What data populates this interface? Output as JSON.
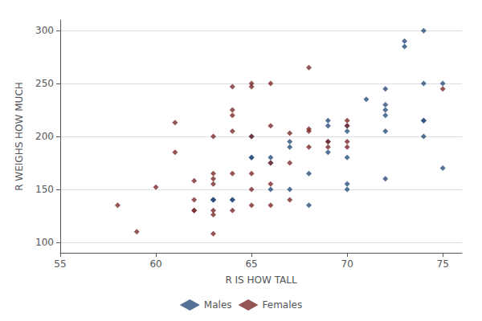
{
  "chart_data": {
    "type": "scatter",
    "xlabel": "R IS HOW TALL",
    "ylabel": "R WEIGHS HOW MUCH",
    "xlim": [
      55,
      76
    ],
    "ylim": [
      90,
      310
    ],
    "xticks": [
      55,
      60,
      65,
      70,
      75
    ],
    "yticks": [
      100,
      150,
      200,
      250,
      300
    ],
    "grid": "y",
    "legend": "bottom",
    "marker": "diamond",
    "series": [
      {
        "name": "Males",
        "color": "#2b4d7c",
        "x": [
          63,
          63,
          63,
          64,
          64,
          65,
          65,
          65,
          66,
          66,
          66,
          67,
          67,
          67,
          68,
          68,
          69,
          69,
          69,
          69,
          70,
          70,
          70,
          70,
          70,
          71,
          72,
          72,
          72,
          72,
          72,
          72,
          73,
          73,
          74,
          74,
          74,
          74,
          74,
          75,
          75
        ],
        "values": [
          140,
          140,
          140,
          140,
          140,
          200,
          180,
          180,
          180,
          175,
          150,
          195,
          190,
          150,
          165,
          135,
          215,
          210,
          195,
          185,
          210,
          205,
          180,
          155,
          150,
          235,
          245,
          230,
          225,
          220,
          205,
          160,
          290,
          285,
          300,
          250,
          215,
          215,
          200,
          250,
          170
        ]
      },
      {
        "name": "Females",
        "color": "#7a2b2b",
        "x": [
          58,
          59,
          60,
          61,
          61,
          62,
          62,
          62,
          62,
          63,
          63,
          63,
          63,
          63,
          63,
          63,
          64,
          64,
          64,
          64,
          64,
          64,
          65,
          65,
          65,
          65,
          65,
          65,
          66,
          66,
          66,
          66,
          66,
          67,
          67,
          67,
          68,
          68,
          68,
          68,
          69,
          69,
          70,
          70,
          70,
          70,
          75
        ],
        "values": [
          135,
          110,
          152,
          213,
          185,
          158,
          140,
          130,
          130,
          200,
          165,
          160,
          155,
          130,
          126,
          108,
          247,
          225,
          220,
          205,
          165,
          130,
          250,
          247,
          200,
          165,
          150,
          135,
          250,
          210,
          175,
          155,
          135,
          203,
          175,
          140,
          265,
          207,
          205,
          190,
          195,
          190,
          215,
          210,
          195,
          190,
          245
        ]
      }
    ]
  }
}
